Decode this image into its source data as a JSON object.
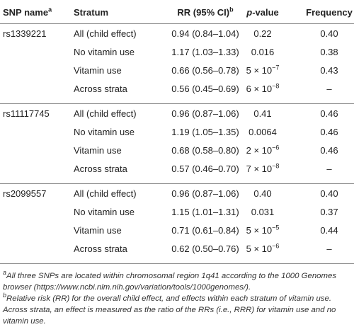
{
  "table": {
    "header": [
      {
        "text": "SNP name",
        "sup": "a"
      },
      {
        "text": "Stratum"
      },
      {
        "text": "RR (95% CI)",
        "sup": "b"
      },
      {
        "italic": "p",
        "text": "-value"
      },
      {
        "text": "Frequency"
      }
    ],
    "groups": [
      {
        "snp": "rs1339221",
        "rows": [
          [
            "All (child effect)",
            "0.94 (0.84–1.04)",
            "0.22",
            "0.40"
          ],
          [
            "No vitamin use",
            "1.17 (1.03–1.33)",
            "0.016",
            "0.38"
          ],
          [
            "Vitamin use",
            "0.66 (0.56–0.78)",
            {
              "base": "5 × 10",
              "exp": "−7"
            },
            "0.43"
          ],
          [
            "Across strata",
            "0.56 (0.45–0.69)",
            {
              "base": "6 × 10",
              "exp": "−8"
            },
            "–"
          ]
        ]
      },
      {
        "snp": "rs11117745",
        "rows": [
          [
            "All (child effect)",
            "0.96 (0.87–1.06)",
            "0.41",
            "0.46"
          ],
          [
            "No vitamin use",
            "1.19 (1.05–1.35)",
            "0.0064",
            "0.46"
          ],
          [
            "Vitamin use",
            "0.68 (0.58–0.80)",
            {
              "base": "2 × 10",
              "exp": "−6"
            },
            "0.46"
          ],
          [
            "Across strata",
            "0.57 (0.46–0.70)",
            {
              "base": "7 × 10",
              "exp": "−8"
            },
            "–"
          ]
        ]
      },
      {
        "snp": "rs2099557",
        "rows": [
          [
            "All (child effect)",
            "0.96 (0.87–1.06)",
            "0.40",
            "0.40"
          ],
          [
            "No vitamin use",
            "1.15 (1.01–1.31)",
            "0.031",
            "0.37"
          ],
          [
            "Vitamin use",
            "0.71 (0.61–0.84)",
            {
              "base": "5 × 10",
              "exp": "−5"
            },
            "0.44"
          ],
          [
            "Across strata",
            "0.62 (0.50–0.76)",
            {
              "base": "5 × 10",
              "exp": "−6"
            },
            "–"
          ]
        ]
      }
    ]
  },
  "footnotes": [
    {
      "marker": "a",
      "text": "All three SNPs are located within chromosomal region 1q41 according to the 1000 Genomes browser (https://www.ncbi.nlm.nih.gov/variation/tools/1000genomes/)."
    },
    {
      "marker": "b",
      "text": "Relative risk (RR) for the overall child effect, and effects within each stratum of vitamin use. Across strata, an effect is measured as the ratio of the RRs (i.e., RRR) for vitamin use and no vitamin use."
    }
  ]
}
